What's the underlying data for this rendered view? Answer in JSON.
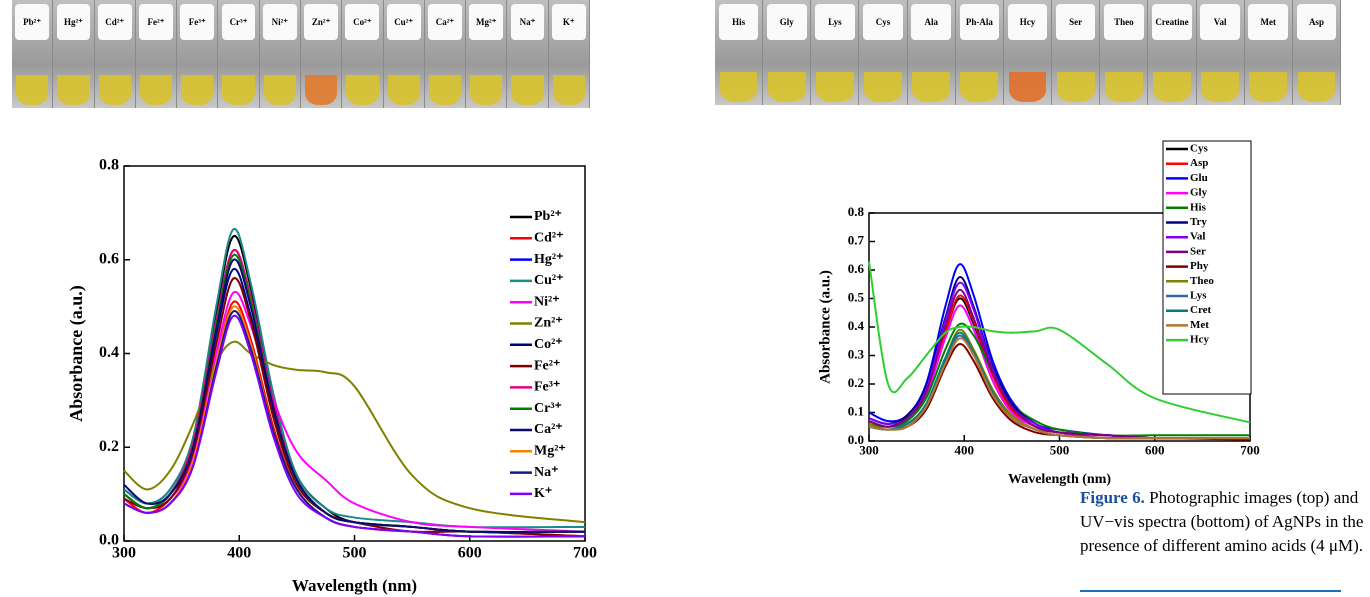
{
  "photos": [
    {
      "vials": [
        {
          "label": "Pb²⁺",
          "color": "#d9c22e"
        },
        {
          "label": "Hg²⁺",
          "color": "#d9c22e"
        },
        {
          "label": "Cd²⁺",
          "color": "#d9c22e"
        },
        {
          "label": "Fe²⁺",
          "color": "#d9c22e"
        },
        {
          "label": "Fe³⁺",
          "color": "#d9c22e"
        },
        {
          "label": "Cr³⁺",
          "color": "#d9c22e"
        },
        {
          "label": "Ni²⁺",
          "color": "#d9c22e"
        },
        {
          "label": "Zn²⁺",
          "color": "#e07a2c"
        },
        {
          "label": "Co²⁺",
          "color": "#d9c22e"
        },
        {
          "label": "Cu²⁺",
          "color": "#d9c22e"
        },
        {
          "label": "Ca²⁺",
          "color": "#d9c22e"
        },
        {
          "label": "Mg²⁺",
          "color": "#d9c22e"
        },
        {
          "label": "Na⁺",
          "color": "#d9c22e"
        },
        {
          "label": "K⁺",
          "color": "#d9c22e"
        }
      ]
    },
    {
      "vials": [
        {
          "label": "His",
          "color": "#d9c22e"
        },
        {
          "label": "Gly",
          "color": "#d9c22e"
        },
        {
          "label": "Lys",
          "color": "#d9c22e"
        },
        {
          "label": "Cys",
          "color": "#d9c22e"
        },
        {
          "label": "Ala",
          "color": "#d9c22e"
        },
        {
          "label": "Ph-Ala",
          "color": "#d9c22e"
        },
        {
          "label": "Hcy",
          "color": "#e0702a"
        },
        {
          "label": "Ser",
          "color": "#d9c22e"
        },
        {
          "label": "Theo",
          "color": "#d9c22e"
        },
        {
          "label": "Creatine",
          "color": "#d9c22e"
        },
        {
          "label": "Val",
          "color": "#d9c22e"
        },
        {
          "label": "Met",
          "color": "#d9c22e"
        },
        {
          "label": "Asp",
          "color": "#d9c22e"
        }
      ]
    }
  ],
  "chart_data": [
    {
      "type": "line",
      "x_label": "Wavelength (nm)",
      "y_label": "Absorbance (a.u.)",
      "x": [
        300,
        320,
        340,
        360,
        380,
        395,
        410,
        430,
        450,
        475,
        500,
        550,
        600,
        700
      ],
      "xlim": [
        300,
        700
      ],
      "xticks": [
        300,
        400,
        500,
        600,
        700
      ],
      "ylim": [
        0,
        0.8
      ],
      "yticks": [
        {
          "value": 0,
          "label": "0.0"
        },
        0.2,
        0.4,
        0.6,
        0.8
      ],
      "legend": "upper right",
      "series": [
        {
          "name": "Pb²⁺",
          "color": "#000000",
          "values": [
            0.11,
            0.08,
            0.11,
            0.22,
            0.49,
            0.65,
            0.54,
            0.3,
            0.14,
            0.07,
            0.04,
            0.03,
            0.02,
            0.02
          ]
        },
        {
          "name": "Cd²⁺",
          "color": "#ff0000",
          "values": [
            0.09,
            0.06,
            0.09,
            0.17,
            0.38,
            0.51,
            0.43,
            0.24,
            0.11,
            0.05,
            0.03,
            0.02,
            0.02,
            0.01
          ]
        },
        {
          "name": "Hg²⁺",
          "color": "#0000ff",
          "values": [
            0.1,
            0.07,
            0.1,
            0.21,
            0.47,
            0.62,
            0.52,
            0.29,
            0.13,
            0.06,
            0.04,
            0.03,
            0.02,
            0.02
          ]
        },
        {
          "name": "Cu²⁺",
          "color": "#1a8a8a",
          "values": [
            0.11,
            0.08,
            0.11,
            0.22,
            0.5,
            0.665,
            0.55,
            0.31,
            0.14,
            0.07,
            0.05,
            0.04,
            0.03,
            0.03
          ]
        },
        {
          "name": "Ni²⁺",
          "color": "#ff00ff",
          "values": [
            0.09,
            0.07,
            0.09,
            0.18,
            0.4,
            0.53,
            0.46,
            0.3,
            0.19,
            0.13,
            0.08,
            0.04,
            0.03,
            0.02
          ]
        },
        {
          "name": "Zn²⁺",
          "color": "#808000",
          "values": [
            0.15,
            0.11,
            0.15,
            0.25,
            0.38,
            0.425,
            0.4,
            0.375,
            0.365,
            0.36,
            0.33,
            0.14,
            0.07,
            0.04
          ]
        },
        {
          "name": "Co²⁺",
          "color": "#000080",
          "values": [
            0.1,
            0.07,
            0.1,
            0.19,
            0.44,
            0.58,
            0.48,
            0.27,
            0.13,
            0.06,
            0.04,
            0.03,
            0.02,
            0.02
          ]
        },
        {
          "name": "Fe²⁺",
          "color": "#800000",
          "values": [
            0.09,
            0.07,
            0.09,
            0.19,
            0.42,
            0.56,
            0.47,
            0.26,
            0.12,
            0.06,
            0.04,
            0.02,
            0.02,
            0.01
          ]
        },
        {
          "name": "Fe³⁺",
          "color": "#e6007e",
          "values": [
            0.1,
            0.07,
            0.1,
            0.21,
            0.47,
            0.62,
            0.52,
            0.29,
            0.13,
            0.06,
            0.04,
            0.03,
            0.02,
            0.02
          ]
        },
        {
          "name": "Cr³⁺",
          "color": "#008000",
          "values": [
            0.1,
            0.07,
            0.1,
            0.2,
            0.46,
            0.61,
            0.51,
            0.28,
            0.13,
            0.06,
            0.04,
            0.03,
            0.02,
            0.02
          ]
        },
        {
          "name": "Ca²⁺",
          "color": "#0a0a70",
          "values": [
            0.12,
            0.08,
            0.1,
            0.2,
            0.45,
            0.6,
            0.5,
            0.28,
            0.13,
            0.06,
            0.04,
            0.03,
            0.02,
            0.02
          ]
        },
        {
          "name": "Mg²⁺",
          "color": "#ff8000",
          "values": [
            0.08,
            0.06,
            0.08,
            0.17,
            0.38,
            0.5,
            0.42,
            0.23,
            0.11,
            0.05,
            0.03,
            0.02,
            0.01,
            0.01
          ]
        },
        {
          "name": "Na⁺",
          "color": "#1a1a80",
          "values": [
            0.08,
            0.06,
            0.08,
            0.16,
            0.37,
            0.49,
            0.41,
            0.23,
            0.11,
            0.05,
            0.03,
            0.02,
            0.01,
            0.01
          ]
        },
        {
          "name": "K⁺",
          "color": "#8000ff",
          "values": [
            0.08,
            0.06,
            0.08,
            0.16,
            0.36,
            0.48,
            0.4,
            0.22,
            0.1,
            0.05,
            0.03,
            0.02,
            0.01,
            0.01
          ]
        }
      ]
    },
    {
      "type": "line",
      "x_label": "Wavelength (nm)",
      "y_label": "Absorbance (a.u.)",
      "x": [
        300,
        320,
        340,
        360,
        380,
        395,
        410,
        430,
        450,
        475,
        500,
        550,
        600,
        700
      ],
      "xlim": [
        300,
        700
      ],
      "xticks": [
        300,
        400,
        500,
        600,
        700
      ],
      "ylim": [
        0,
        0.8
      ],
      "yticks": [
        {
          "value": 0,
          "label": "0.0"
        },
        0.1,
        0.2,
        0.3,
        0.4,
        0.5,
        0.6,
        0.7,
        0.8
      ],
      "legend": "upper right",
      "series": [
        {
          "name": "Cys",
          "color": "#000000",
          "values": [
            0.07,
            0.05,
            0.08,
            0.17,
            0.38,
            0.5,
            0.41,
            0.23,
            0.11,
            0.05,
            0.03,
            0.02,
            0.01,
            0.01
          ]
        },
        {
          "name": "Asp",
          "color": "#ff0000",
          "values": [
            0.07,
            0.05,
            0.08,
            0.17,
            0.38,
            0.51,
            0.42,
            0.23,
            0.11,
            0.05,
            0.03,
            0.02,
            0.01,
            0.01
          ]
        },
        {
          "name": "Glu",
          "color": "#0000ff",
          "values": [
            0.1,
            0.07,
            0.09,
            0.2,
            0.47,
            0.62,
            0.51,
            0.28,
            0.14,
            0.06,
            0.04,
            0.02,
            0.01,
            0.01
          ]
        },
        {
          "name": "Gly",
          "color": "#ff00ff",
          "values": [
            0.07,
            0.05,
            0.07,
            0.16,
            0.36,
            0.475,
            0.39,
            0.21,
            0.1,
            0.05,
            0.03,
            0.01,
            0.01,
            0.01
          ]
        },
        {
          "name": "His",
          "color": "#008000",
          "values": [
            0.06,
            0.05,
            0.07,
            0.15,
            0.32,
            0.41,
            0.37,
            0.24,
            0.13,
            0.07,
            0.04,
            0.02,
            0.02,
            0.02
          ]
        },
        {
          "name": "Try",
          "color": "#000080",
          "values": [
            0.08,
            0.06,
            0.09,
            0.19,
            0.43,
            0.575,
            0.47,
            0.26,
            0.13,
            0.06,
            0.03,
            0.02,
            0.01,
            0.01
          ]
        },
        {
          "name": "Val",
          "color": "#8000ff",
          "values": [
            0.08,
            0.06,
            0.08,
            0.18,
            0.42,
            0.555,
            0.46,
            0.25,
            0.12,
            0.06,
            0.03,
            0.02,
            0.01,
            0.01
          ]
        },
        {
          "name": "Ser",
          "color": "#800080",
          "values": [
            0.07,
            0.05,
            0.08,
            0.17,
            0.4,
            0.53,
            0.43,
            0.24,
            0.12,
            0.05,
            0.03,
            0.02,
            0.01,
            0.01
          ]
        },
        {
          "name": "Phy",
          "color": "#800000",
          "values": [
            0.05,
            0.04,
            0.05,
            0.11,
            0.26,
            0.34,
            0.28,
            0.15,
            0.07,
            0.03,
            0.02,
            0.01,
            0.01,
            0.005
          ]
        },
        {
          "name": "Theo",
          "color": "#808000",
          "values": [
            0.06,
            0.04,
            0.06,
            0.13,
            0.29,
            0.39,
            0.32,
            0.18,
            0.09,
            0.04,
            0.02,
            0.01,
            0.01,
            0.01
          ]
        },
        {
          "name": "Lys",
          "color": "#336699",
          "values": [
            0.05,
            0.04,
            0.06,
            0.12,
            0.28,
            0.37,
            0.3,
            0.17,
            0.08,
            0.04,
            0.02,
            0.01,
            0.01,
            0.01
          ]
        },
        {
          "name": "Cret",
          "color": "#008080",
          "values": [
            0.05,
            0.04,
            0.06,
            0.13,
            0.29,
            0.38,
            0.31,
            0.17,
            0.08,
            0.04,
            0.02,
            0.01,
            0.01,
            0.01
          ]
        },
        {
          "name": "Met",
          "color": "#b87333",
          "values": [
            0.05,
            0.04,
            0.05,
            0.12,
            0.27,
            0.36,
            0.3,
            0.16,
            0.08,
            0.04,
            0.02,
            0.01,
            0.01,
            0.01
          ]
        },
        {
          "name": "Hcy",
          "color": "#33cc33",
          "values": [
            0.63,
            0.2,
            0.22,
            0.3,
            0.38,
            0.4,
            0.4,
            0.385,
            0.38,
            0.385,
            0.39,
            0.27,
            0.15,
            0.065
          ]
        }
      ]
    }
  ],
  "caption": {
    "label": "Figure 6.",
    "text": "Photographic images (top) and UV−vis spectra (bottom) of AgNPs in the presence of different amino acids (4 μM)."
  }
}
